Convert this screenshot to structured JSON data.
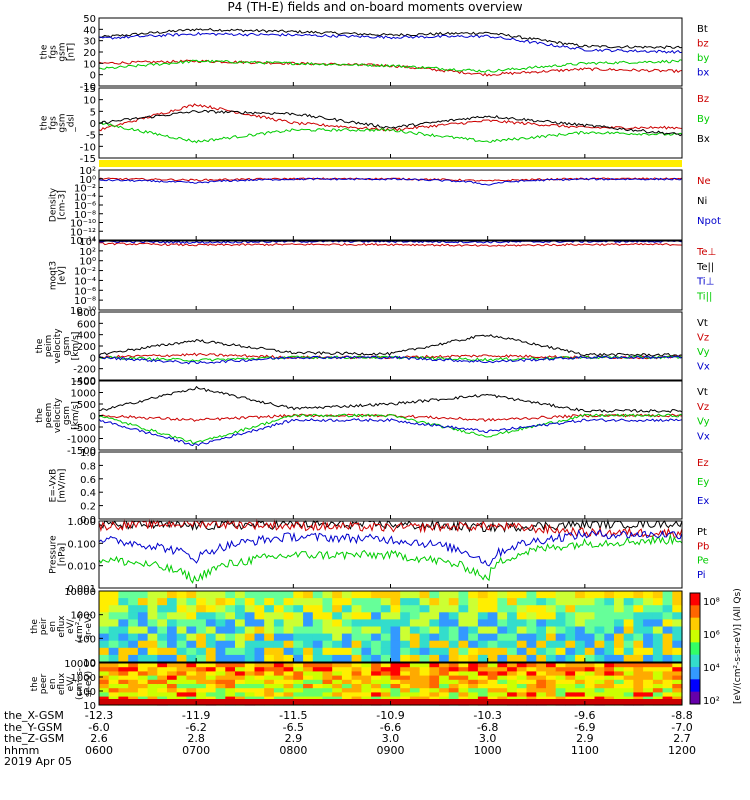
{
  "title": "P4 (TH-E) fields and on-board moments overview",
  "panels": [
    {
      "ylabel": [
        "the",
        "fgs",
        "gsm",
        "[nT]"
      ],
      "yticks": [
        "50",
        "40",
        "30",
        "20",
        "10",
        "0",
        "-10"
      ],
      "legend": [
        {
          "text": "Bt",
          "color": "#000000"
        },
        {
          "text": "bz",
          "color": "#cc0000"
        },
        {
          "text": "by",
          "color": "#00cc00"
        },
        {
          "text": "bx",
          "color": "#0000cc"
        }
      ]
    },
    {
      "ylabel": [
        "the",
        "fgs",
        "gsm",
        "_dsl"
      ],
      "yticks": [
        "15",
        "10",
        "5",
        "0",
        "-5",
        "-10",
        "-15"
      ],
      "legend": [
        {
          "text": "Bz",
          "color": "#cc0000"
        },
        {
          "text": "By",
          "color": "#00cc00"
        },
        {
          "text": "Bx",
          "color": "#000000"
        }
      ]
    },
    {
      "ylabel": [
        "Density",
        "[cm-3]"
      ],
      "yticks": [
        "10²",
        "10⁰",
        "10⁻²",
        "10⁻⁴",
        "10⁻⁶",
        "10⁻⁸",
        "10⁻¹⁰",
        "10⁻¹²",
        "10⁻¹⁴"
      ],
      "legend": [
        {
          "text": "Ne",
          "color": "#cc0000"
        },
        {
          "text": "Ni",
          "color": "#000000"
        },
        {
          "text": "Npot",
          "color": "#0000cc"
        }
      ]
    },
    {
      "ylabel": [
        "moqt3",
        "[eV]"
      ],
      "yticks": [
        "10⁴",
        "10²",
        "10⁰",
        "10⁻²",
        "10⁻⁴",
        "10⁻⁶",
        "10⁻⁸",
        "10⁻¹⁰"
      ],
      "legend": [
        {
          "text": "Te⊥",
          "color": "#cc0000"
        },
        {
          "text": "Te||",
          "color": "#000000"
        },
        {
          "text": "Ti⊥",
          "color": "#0000cc"
        },
        {
          "text": "Ti||",
          "color": "#00cc00"
        }
      ]
    },
    {
      "ylabel": [
        "the",
        "peim",
        "velocity",
        "gsm",
        "[km/s]"
      ],
      "yticks": [
        "800",
        "600",
        "400",
        "200",
        "0",
        "-200",
        "-400"
      ],
      "legend": [
        {
          "text": "Vt",
          "color": "#000000"
        },
        {
          "text": "Vz",
          "color": "#cc0000"
        },
        {
          "text": "Vy",
          "color": "#00cc00"
        },
        {
          "text": "Vx",
          "color": "#0000cc"
        }
      ]
    },
    {
      "ylabel": [
        "the",
        "peem",
        "velocity",
        "gsm",
        "[km/s]"
      ],
      "yticks": [
        "1500",
        "1000",
        "500",
        "0",
        "-500",
        "-1000",
        "-1500"
      ],
      "legend": [
        {
          "text": "Vt",
          "color": "#000000"
        },
        {
          "text": "Vz",
          "color": "#cc0000"
        },
        {
          "text": "Vy",
          "color": "#00cc00"
        },
        {
          "text": "Vx",
          "color": "#0000cc"
        }
      ]
    },
    {
      "ylabel": [
        "E=-VxB",
        "[mV/m]"
      ],
      "yticks": [
        "1.0",
        "0.8",
        "0.6",
        "0.4",
        "0.2",
        "0.0"
      ],
      "legend": [
        {
          "text": "Ez",
          "color": "#cc0000"
        },
        {
          "text": "Ey",
          "color": "#00cc00"
        },
        {
          "text": "Ex",
          "color": "#0000cc"
        }
      ]
    },
    {
      "ylabel": [
        "Pressure",
        "[nPa]"
      ],
      "yticks": [
        "1.000",
        "0.100",
        "0.010",
        "0.001"
      ],
      "legend": [
        {
          "text": "Pt",
          "color": "#000000"
        },
        {
          "text": "Pb",
          "color": "#cc0000"
        },
        {
          "text": "Pe",
          "color": "#00cc00"
        },
        {
          "text": "Pi",
          "color": "#0000cc"
        }
      ]
    },
    {
      "ylabel": [
        "the",
        "peir",
        "en",
        "eflux",
        "eV/",
        "(cm²-s-",
        "sr-eV)"
      ],
      "yticks": [
        "10000",
        "1000",
        "100",
        "10"
      ],
      "legend": []
    },
    {
      "ylabel": [
        "the",
        "peer",
        "en",
        "eflux",
        "eV/",
        "(cm²-s-",
        "sr-eV)"
      ],
      "yticks": [
        "10000",
        "1000",
        "100",
        "10"
      ],
      "legend": []
    }
  ],
  "colorbar": {
    "ticks": [
      "10⁸",
      "10⁶",
      "10⁴",
      "10²"
    ],
    "label": "[eV/(cm²-s-sr-eV)] (All Qs)"
  },
  "xaxis": {
    "rows": [
      {
        "name": "the_X-GSM",
        "values": [
          "-12.3",
          "-11.9",
          "-11.5",
          "-10.9",
          "-10.3",
          "-9.6",
          "-8.8"
        ]
      },
      {
        "name": "the_Y-GSM",
        "values": [
          "-6.0",
          "-6.2",
          "-6.5",
          "-6.6",
          "-6.8",
          "-6.9",
          "-7.0"
        ]
      },
      {
        "name": "the_Z-GSM",
        "values": [
          "2.6",
          "2.8",
          "2.9",
          "3.0",
          "3.0",
          "2.9",
          "2.7"
        ]
      },
      {
        "name": "hhmm",
        "values": [
          "0600",
          "0700",
          "0800",
          "0900",
          "1000",
          "1100",
          "1200"
        ]
      }
    ],
    "date": "2019 Apr 05"
  },
  "chart_data": {
    "type": "line",
    "title": "P4 (TH-E) fields and on-board moments overview",
    "x": [
      "0600",
      "0700",
      "0800",
      "0900",
      "1000",
      "1100",
      "1200"
    ],
    "panels": [
      {
        "name": "the fgs gsm [nT]",
        "ylim": [
          -10,
          50
        ],
        "series": [
          {
            "name": "Bt",
            "values": [
              33,
              40,
              38,
              35,
              37,
              25,
              24
            ]
          },
          {
            "name": "bz",
            "values": [
              10,
              12,
              10,
              8,
              0,
              5,
              3
            ]
          },
          {
            "name": "by",
            "values": [
              5,
              12,
              10,
              8,
              3,
              10,
              12
            ]
          },
          {
            "name": "bx",
            "values": [
              32,
              36,
              35,
              33,
              34,
              22,
              20
            ]
          }
        ]
      },
      {
        "name": "the fgs gsm _dsl",
        "ylim": [
          -15,
          15
        ],
        "series": [
          {
            "name": "Bz",
            "values": [
              -3,
              8,
              0,
              -3,
              1,
              -2,
              -2
            ]
          },
          {
            "name": "By",
            "values": [
              0,
              -8,
              -3,
              -3,
              -8,
              -4,
              -5
            ]
          },
          {
            "name": "Bx",
            "values": [
              0,
              5,
              4,
              -2,
              3,
              -1,
              -5
            ]
          }
        ]
      },
      {
        "name": "Density [cm-3]",
        "scale": "log",
        "series": [
          {
            "name": "Ne",
            "values": [
              1,
              0.5,
              1,
              1,
              0.3,
              1,
              1
            ]
          },
          {
            "name": "Npot",
            "values": [
              0.5,
              0.1,
              0.8,
              0.8,
              0.03,
              0.8,
              0.8
            ]
          }
        ]
      },
      {
        "name": "moqt3 [eV]",
        "scale": "log",
        "series": [
          {
            "name": "Te⊥",
            "values": [
              3000,
              1500,
              2000,
              2000,
              1000,
              2000,
              2000
            ]
          },
          {
            "name": "Ti⊥",
            "values": [
              8000,
              5000,
              8000,
              8000,
              6000,
              8000,
              8000
            ]
          }
        ]
      },
      {
        "name": "the peim velocity gsm [km/s]",
        "ylim": [
          -400,
          800
        ],
        "series": [
          {
            "name": "Vt",
            "values": [
              50,
              300,
              80,
              60,
              400,
              50,
              40
            ]
          },
          {
            "name": "Vz",
            "values": [
              0,
              50,
              0,
              0,
              30,
              0,
              0
            ]
          },
          {
            "name": "Vy",
            "values": [
              0,
              -50,
              0,
              0,
              -40,
              0,
              0
            ]
          },
          {
            "name": "Vx",
            "values": [
              0,
              -100,
              0,
              0,
              -80,
              0,
              0
            ]
          }
        ]
      },
      {
        "name": "the peem velocity gsm [km/s]",
        "ylim": [
          -1500,
          1500
        ],
        "series": [
          {
            "name": "Vt",
            "values": [
              200,
              1200,
              300,
              500,
              900,
              200,
              200
            ]
          },
          {
            "name": "Vz",
            "values": [
              0,
              -200,
              0,
              0,
              -200,
              0,
              0
            ]
          },
          {
            "name": "Vy",
            "values": [
              0,
              -1200,
              0,
              0,
              -900,
              0,
              0
            ]
          },
          {
            "name": "Vx",
            "values": [
              -200,
              -1300,
              -200,
              -200,
              -700,
              -200,
              -200
            ]
          }
        ]
      },
      {
        "name": "E=-VxB [mV/m]",
        "ylim": [
          0,
          1
        ],
        "series": []
      },
      {
        "name": "Pressure [nPa]",
        "scale": "log",
        "series": [
          {
            "name": "Pt",
            "values": [
              0.7,
              0.6,
              0.7,
              0.7,
              0.5,
              0.7,
              0.8
            ]
          },
          {
            "name": "Pb",
            "values": [
              0.6,
              0.8,
              0.6,
              0.5,
              0.6,
              0.3,
              0.3
            ]
          },
          {
            "name": "Pe",
            "values": [
              0.02,
              0.002,
              0.03,
              0.03,
              0.002,
              0.1,
              0.15
            ]
          },
          {
            "name": "Pi",
            "values": [
              0.15,
              0.02,
              0.2,
              0.15,
              0.01,
              0.25,
              0.25
            ]
          }
        ]
      },
      {
        "name": "the peir en eflux",
        "type": "heatmap",
        "ylim": [
          5,
          30000
        ]
      },
      {
        "name": "the peer en eflux",
        "type": "heatmap",
        "ylim": [
          5,
          30000
        ]
      }
    ]
  }
}
